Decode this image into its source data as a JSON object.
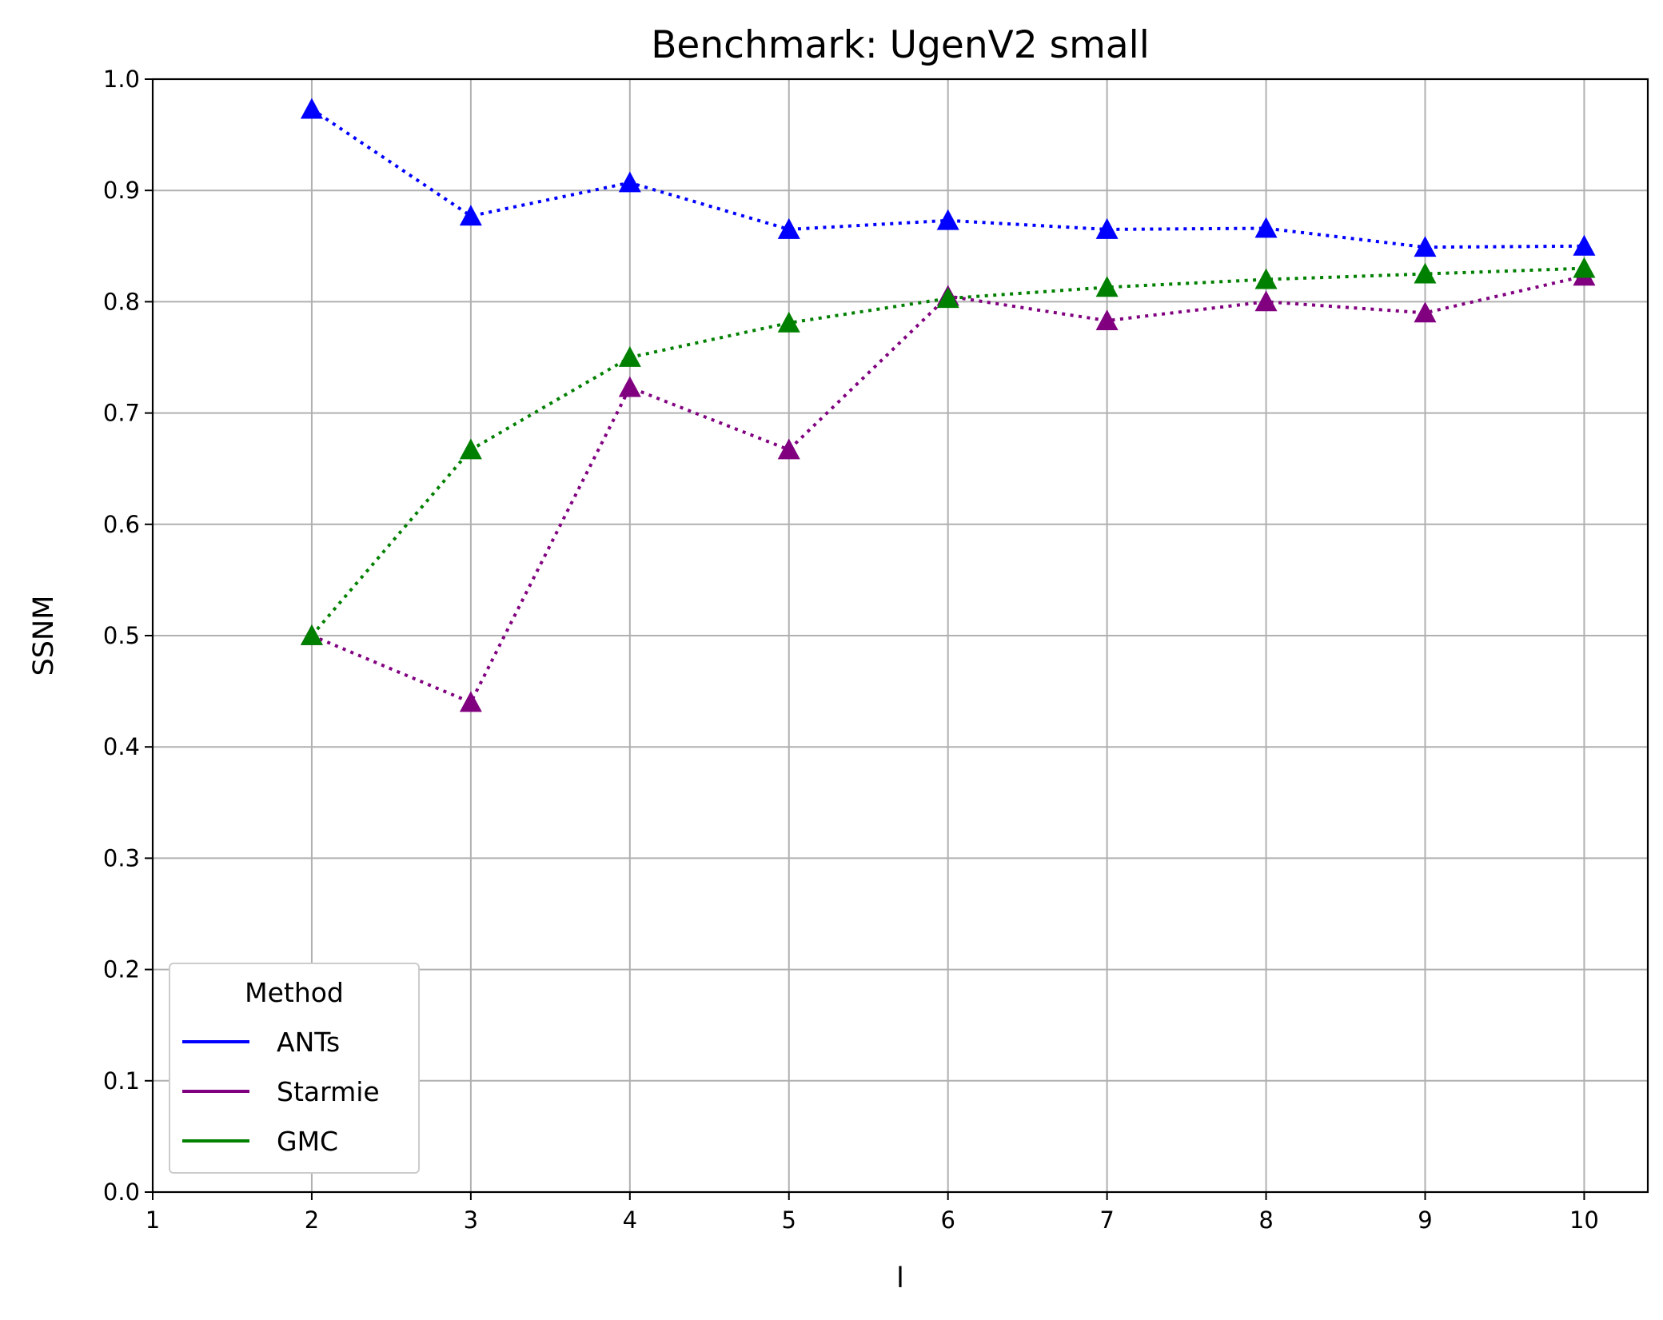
{
  "chart_data": {
    "type": "line",
    "title": "Benchmark: UgenV2 small",
    "xlabel": "l",
    "ylabel": "SSNM",
    "xlim": [
      1,
      10.4
    ],
    "ylim": [
      0,
      1.0
    ],
    "x_ticks": [
      "1",
      "2",
      "3",
      "4",
      "5",
      "6",
      "7",
      "8",
      "9",
      "10"
    ],
    "y_ticks": [
      "0.0",
      "0.1",
      "0.2",
      "0.3",
      "0.4",
      "0.5",
      "0.6",
      "0.7",
      "0.8",
      "0.9",
      "1.0"
    ],
    "grid": true,
    "line_style": "dotted",
    "marker": "triangle-up",
    "legend": {
      "title": "Method",
      "placement": "lower-left"
    },
    "x": [
      2,
      3,
      4,
      5,
      6,
      7,
      8,
      9,
      10
    ],
    "series": [
      {
        "name": "ANTs",
        "color": "#0000ff",
        "values": [
          0.973,
          0.877,
          0.907,
          0.865,
          0.873,
          0.865,
          0.866,
          0.849,
          0.85
        ]
      },
      {
        "name": "Starmie",
        "color": "#800080",
        "values": [
          0.5,
          0.44,
          0.723,
          0.667,
          0.805,
          0.783,
          0.8,
          0.79,
          0.823
        ]
      },
      {
        "name": "GMC",
        "color": "#008000",
        "values": [
          0.5,
          0.667,
          0.75,
          0.781,
          0.803,
          0.813,
          0.82,
          0.825,
          0.83
        ]
      }
    ]
  }
}
